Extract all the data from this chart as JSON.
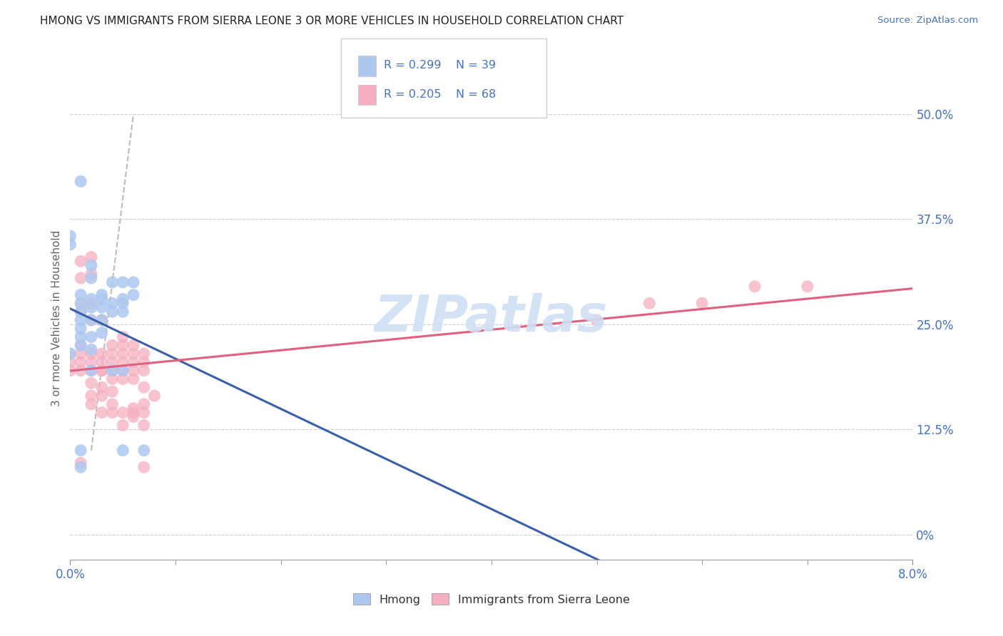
{
  "title": "HMONG VS IMMIGRANTS FROM SIERRA LEONE 3 OR MORE VEHICLES IN HOUSEHOLD CORRELATION CHART",
  "source": "Source: ZipAtlas.com",
  "ylabel": "3 or more Vehicles in Household",
  "ytick_labels": [
    "0%",
    "12.5%",
    "25.0%",
    "37.5%",
    "50.0%"
  ],
  "ytick_values": [
    0.0,
    0.125,
    0.25,
    0.375,
    0.5
  ],
  "xmin": 0.0,
  "xmax": 0.08,
  "ymin": -0.03,
  "ymax": 0.545,
  "hmong_R": 0.299,
  "hmong_N": 39,
  "sierra_R": 0.205,
  "sierra_N": 68,
  "hmong_color": "#adc8f0",
  "sierra_color": "#f5afc0",
  "hmong_line_color": "#3a5faa",
  "sierra_line_color": "#e06080",
  "watermark_text": "ZIPatlas",
  "watermark_color": "#d0dff5",
  "hmong_x": [
    0.0,
    0.0,
    0.0,
    0.001,
    0.001,
    0.001,
    0.001,
    0.001,
    0.001,
    0.001,
    0.001,
    0.001,
    0.001,
    0.002,
    0.002,
    0.002,
    0.002,
    0.002,
    0.002,
    0.002,
    0.002,
    0.003,
    0.003,
    0.003,
    0.003,
    0.003,
    0.004,
    0.004,
    0.004,
    0.004,
    0.005,
    0.005,
    0.005,
    0.005,
    0.005,
    0.005,
    0.006,
    0.006,
    0.007
  ],
  "hmong_y": [
    0.355,
    0.345,
    0.215,
    0.225,
    0.235,
    0.245,
    0.255,
    0.265,
    0.275,
    0.285,
    0.1,
    0.08,
    0.42,
    0.22,
    0.235,
    0.255,
    0.27,
    0.28,
    0.305,
    0.32,
    0.195,
    0.24,
    0.255,
    0.27,
    0.28,
    0.285,
    0.265,
    0.275,
    0.3,
    0.195,
    0.275,
    0.28,
    0.3,
    0.265,
    0.195,
    0.1,
    0.285,
    0.3,
    0.1
  ],
  "sierra_x": [
    0.0,
    0.0,
    0.0,
    0.001,
    0.001,
    0.001,
    0.001,
    0.001,
    0.001,
    0.001,
    0.001,
    0.001,
    0.002,
    0.002,
    0.002,
    0.002,
    0.002,
    0.002,
    0.002,
    0.002,
    0.002,
    0.002,
    0.003,
    0.003,
    0.003,
    0.003,
    0.003,
    0.003,
    0.003,
    0.003,
    0.004,
    0.004,
    0.004,
    0.004,
    0.004,
    0.004,
    0.004,
    0.004,
    0.005,
    0.005,
    0.005,
    0.005,
    0.005,
    0.005,
    0.005,
    0.005,
    0.006,
    0.006,
    0.006,
    0.006,
    0.006,
    0.006,
    0.006,
    0.006,
    0.007,
    0.007,
    0.007,
    0.007,
    0.007,
    0.007,
    0.007,
    0.007,
    0.008,
    0.05,
    0.055,
    0.06,
    0.065,
    0.07
  ],
  "sierra_y": [
    0.195,
    0.205,
    0.215,
    0.195,
    0.205,
    0.215,
    0.225,
    0.265,
    0.275,
    0.305,
    0.325,
    0.085,
    0.155,
    0.165,
    0.195,
    0.205,
    0.215,
    0.255,
    0.275,
    0.31,
    0.33,
    0.18,
    0.145,
    0.175,
    0.195,
    0.205,
    0.215,
    0.255,
    0.195,
    0.165,
    0.145,
    0.155,
    0.185,
    0.195,
    0.205,
    0.215,
    0.225,
    0.17,
    0.145,
    0.185,
    0.195,
    0.205,
    0.215,
    0.225,
    0.235,
    0.13,
    0.205,
    0.215,
    0.225,
    0.195,
    0.14,
    0.15,
    0.185,
    0.145,
    0.195,
    0.205,
    0.215,
    0.08,
    0.155,
    0.13,
    0.175,
    0.145,
    0.165,
    0.255,
    0.275,
    0.275,
    0.295,
    0.295
  ],
  "ref_line_x": [
    0.002,
    0.006
  ],
  "ref_line_y": [
    0.1,
    0.5
  ]
}
